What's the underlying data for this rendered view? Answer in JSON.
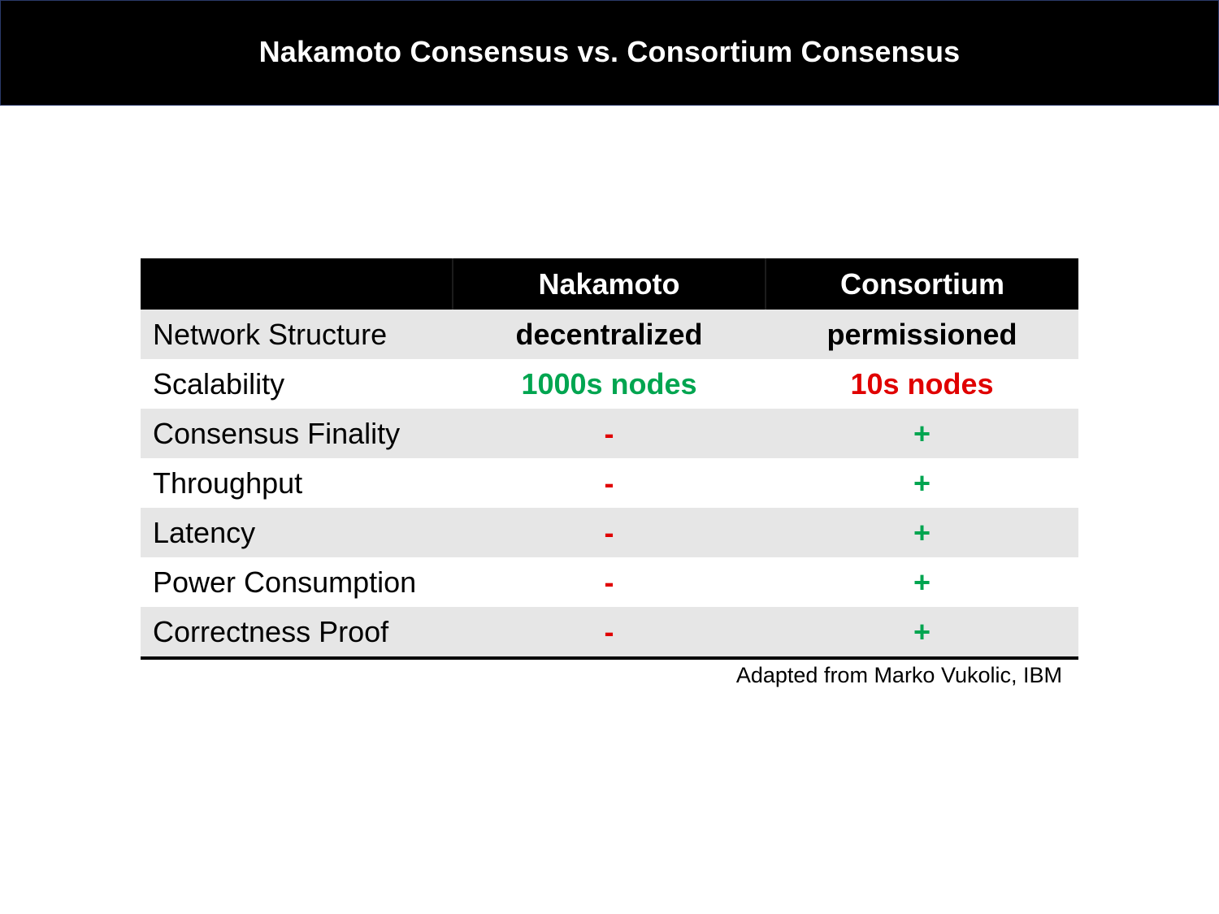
{
  "title": "Nakamoto Consensus vs. Consortium Consensus",
  "colors": {
    "positive": "#00a550",
    "negative": "#e00000",
    "neutral": "#000000",
    "header_bg": "#000000",
    "band_bg": "#e6e6e6"
  },
  "table": {
    "headers": [
      "",
      "Nakamoto",
      "Consortium"
    ],
    "rows": [
      {
        "label": "Network Structure",
        "nakamoto": "decentralized",
        "nakamoto_tone": "neutral",
        "consortium": "permissioned",
        "consortium_tone": "neutral"
      },
      {
        "label": "Scalability",
        "nakamoto": "1000s nodes",
        "nakamoto_tone": "positive",
        "consortium": "10s nodes",
        "consortium_tone": "negative"
      },
      {
        "label": "Consensus Finality",
        "nakamoto": "-",
        "nakamoto_tone": "negative",
        "consortium": "+",
        "consortium_tone": "positive"
      },
      {
        "label": "Throughput",
        "nakamoto": "-",
        "nakamoto_tone": "negative",
        "consortium": "+",
        "consortium_tone": "positive"
      },
      {
        "label": "Latency",
        "nakamoto": "-",
        "nakamoto_tone": "negative",
        "consortium": "+",
        "consortium_tone": "positive"
      },
      {
        "label": "Power Consumption",
        "nakamoto": "-",
        "nakamoto_tone": "negative",
        "consortium": "+",
        "consortium_tone": "positive"
      },
      {
        "label": "Correctness Proof",
        "nakamoto": "-",
        "nakamoto_tone": "negative",
        "consortium": "+",
        "consortium_tone": "positive"
      }
    ]
  },
  "footnote": "Adapted from Marko Vukolic, IBM"
}
